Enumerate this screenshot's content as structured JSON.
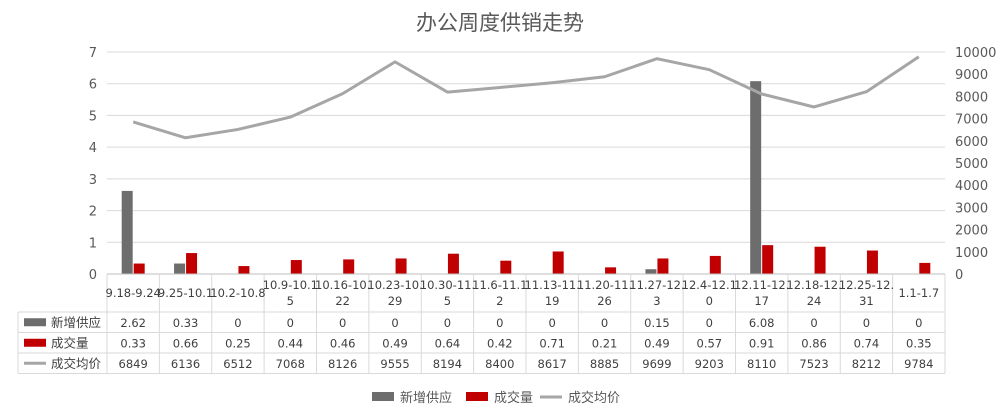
{
  "chart_data": {
    "type": "bar",
    "title": "办公周度供销走势",
    "categories": [
      [
        "9.18-9.24"
      ],
      [
        "9.25-10.1"
      ],
      [
        "10.2-10.8"
      ],
      [
        "10.9-10.1",
        "5"
      ],
      [
        "10.16-10.",
        "22"
      ],
      [
        "10.23-10.",
        "29"
      ],
      [
        "10.30-11.",
        "5"
      ],
      [
        "11.6-11.1",
        "2"
      ],
      [
        "11.13-11.",
        "19"
      ],
      [
        "11.20-11.",
        "26"
      ],
      [
        "11.27-12.",
        "3"
      ],
      [
        "12.4-12.1",
        "0"
      ],
      [
        "12.11-12.",
        "17"
      ],
      [
        "12.18-12.",
        "24"
      ],
      [
        "12.25-12.",
        "31"
      ],
      [
        "1.1-1.7"
      ]
    ],
    "y_left": {
      "min": 0,
      "max": 7,
      "ticks": [
        "0",
        "1",
        "2",
        "3",
        "4",
        "5",
        "6",
        "7"
      ]
    },
    "y_right": {
      "min": 0,
      "max": 10000,
      "ticks": [
        "0",
        "1000",
        "2000",
        "3000",
        "4000",
        "5000",
        "6000",
        "7000",
        "8000",
        "9000",
        "10000"
      ]
    },
    "series": [
      {
        "name": "新增供应",
        "kind": "bar",
        "axis": "left",
        "color": "#6d6d6d",
        "values": [
          2.62,
          0.33,
          0,
          0,
          0,
          0,
          0,
          0,
          0,
          0,
          0.15,
          0,
          6.08,
          0,
          0,
          0
        ],
        "labels": [
          "2.62",
          "0.33",
          "0",
          "0",
          "0",
          "0",
          "0",
          "0",
          "0",
          "0",
          "0.15",
          "0",
          "6.08",
          "0",
          "0",
          "0"
        ]
      },
      {
        "name": "成交量",
        "kind": "bar",
        "axis": "left",
        "color": "#c00000",
        "values": [
          0.33,
          0.66,
          0.25,
          0.44,
          0.46,
          0.49,
          0.64,
          0.42,
          0.71,
          0.21,
          0.49,
          0.57,
          0.91,
          0.86,
          0.74,
          0.35
        ],
        "labels": [
          "0.33",
          "0.66",
          "0.25",
          "0.44",
          "0.46",
          "0.49",
          "0.64",
          "0.42",
          "0.71",
          "0.21",
          "0.49",
          "0.57",
          "0.91",
          "0.86",
          "0.74",
          "0.35"
        ]
      },
      {
        "name": "成交均价",
        "kind": "line",
        "axis": "right",
        "color": "#a6a6a6",
        "values": [
          6849,
          6136,
          6512,
          7068,
          8126,
          9555,
          8194,
          8400,
          8617,
          8885,
          9699,
          9203,
          8110,
          7523,
          8212,
          9784
        ],
        "labels": [
          "6849",
          "6136",
          "6512",
          "7068",
          "8126",
          "9555",
          "8194",
          "8400",
          "8617",
          "8885",
          "9699",
          "9203",
          "8110",
          "7523",
          "8212",
          "9784"
        ]
      }
    ],
    "legend": {
      "position": "bottom"
    },
    "data_table": true
  }
}
